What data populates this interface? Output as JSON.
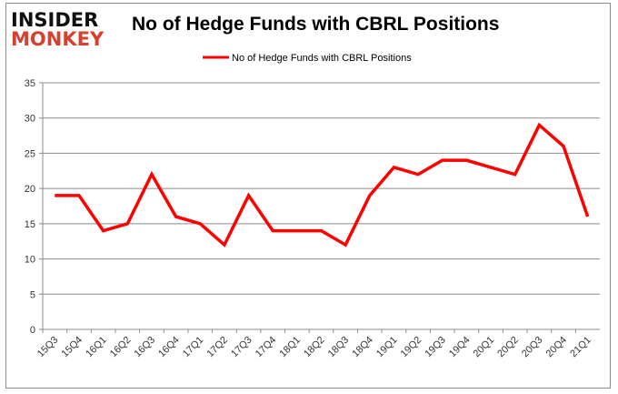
{
  "logo": {
    "line1": "INSIDER",
    "line2": "MONKEY"
  },
  "colors": {
    "series": "#ff0000",
    "grid": "#8c8c8c",
    "logo_red": "#d6402e"
  },
  "chart_data": {
    "type": "line",
    "title": "No of Hedge Funds with CBRL Positions",
    "xlabel": "",
    "ylabel": "",
    "legend": {
      "position": "top-center",
      "entries": [
        "No of Hedge Funds with CBRL Positions"
      ]
    },
    "ylim": [
      0,
      35
    ],
    "yticks": [
      0,
      5,
      10,
      15,
      20,
      25,
      30,
      35
    ],
    "grid": true,
    "categories": [
      "15Q3",
      "15Q4",
      "16Q1",
      "16Q2",
      "16Q3",
      "16Q4",
      "17Q1",
      "17Q2",
      "17Q3",
      "17Q4",
      "18Q1",
      "18Q2",
      "18Q3",
      "18Q4",
      "19Q1",
      "19Q2",
      "19Q3",
      "19Q4",
      "20Q1",
      "20Q2",
      "20Q3",
      "20Q4",
      "21Q1"
    ],
    "series": [
      {
        "name": "No of Hedge Funds with CBRL Positions",
        "values": [
          19,
          19,
          14,
          15,
          22,
          16,
          15,
          12,
          19,
          14,
          14,
          14,
          12,
          19,
          23,
          22,
          24,
          24,
          23,
          22,
          29,
          26,
          16
        ]
      }
    ]
  }
}
